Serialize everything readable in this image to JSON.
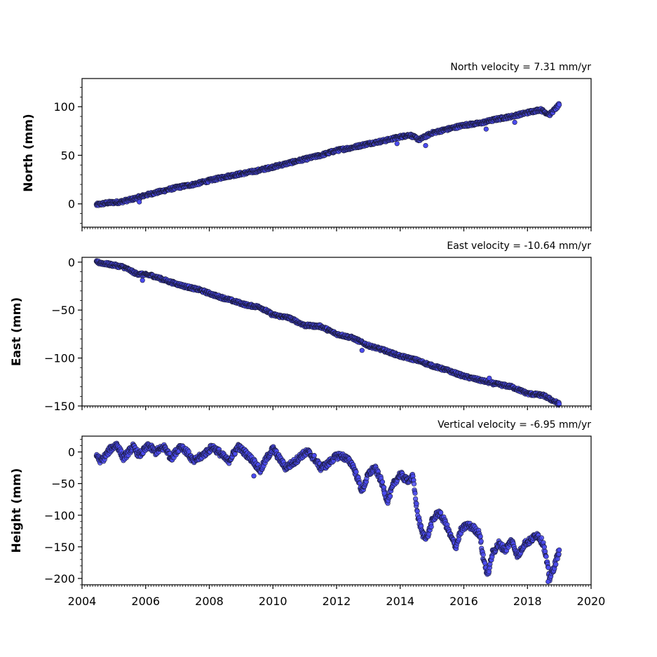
{
  "chart_data": [
    {
      "type": "scatter",
      "title": "North velocity = 7.31 mm/yr",
      "xlabel": "",
      "ylabel": "North (mm)",
      "xlim": [
        2004,
        2020
      ],
      "ylim": [
        -24,
        129
      ],
      "yticks": [
        0,
        50,
        100
      ],
      "ytick_labels": [
        "0",
        "50",
        "100"
      ],
      "grid": false,
      "series": [
        {
          "points": [
            [
              2004.45,
              -1
            ],
            [
              2004.8,
              1
            ],
            [
              2005.2,
              2
            ],
            [
              2005.6,
              5
            ],
            [
              2006.0,
              9
            ],
            [
              2006.5,
              13
            ],
            [
              2007.0,
              17
            ],
            [
              2007.5,
              20
            ],
            [
              2008.0,
              24
            ],
            [
              2008.5,
              28
            ],
            [
              2009.0,
              31
            ],
            [
              2009.5,
              34
            ],
            [
              2010.0,
              38
            ],
            [
              2010.5,
              42
            ],
            [
              2011.0,
              46
            ],
            [
              2011.5,
              50
            ],
            [
              2012.0,
              55
            ],
            [
              2012.5,
              58
            ],
            [
              2013.0,
              62
            ],
            [
              2013.5,
              65
            ],
            [
              2014.0,
              69
            ],
            [
              2014.3,
              71
            ],
            [
              2014.6,
              66
            ],
            [
              2015.0,
              73
            ],
            [
              2015.5,
              77
            ],
            [
              2016.0,
              81
            ],
            [
              2016.5,
              83
            ],
            [
              2017.0,
              87
            ],
            [
              2017.5,
              90
            ],
            [
              2018.0,
              94
            ],
            [
              2018.4,
              97
            ],
            [
              2018.7,
              92
            ],
            [
              2019.0,
              102
            ]
          ]
        }
      ],
      "outliers": [
        [
          2005.8,
          2
        ],
        [
          2013.9,
          62
        ],
        [
          2014.8,
          60
        ],
        [
          2016.7,
          77
        ],
        [
          2017.6,
          84
        ]
      ],
      "marker_color": "#4b4bf0",
      "marker_edge": "#1a1a3a"
    },
    {
      "type": "scatter",
      "title": "East velocity = -10.64 mm/yr",
      "xlabel": "",
      "ylabel": "East (mm)",
      "xlim": [
        2004,
        2020
      ],
      "ylim": [
        -150,
        5
      ],
      "yticks": [
        0,
        -50,
        -100,
        -150
      ],
      "ytick_labels": [
        "0",
        "−50",
        "−100",
        "−150"
      ],
      "grid": false,
      "series": [
        {
          "points": [
            [
              2004.45,
              0
            ],
            [
              2004.8,
              -2
            ],
            [
              2005.3,
              -5
            ],
            [
              2005.7,
              -12
            ],
            [
              2006.2,
              -14
            ],
            [
              2006.7,
              -20
            ],
            [
              2007.2,
              -25
            ],
            [
              2007.7,
              -29
            ],
            [
              2008.2,
              -35
            ],
            [
              2008.7,
              -40
            ],
            [
              2009.2,
              -45
            ],
            [
              2009.6,
              -47
            ],
            [
              2010.0,
              -55
            ],
            [
              2010.5,
              -58
            ],
            [
              2011.0,
              -66
            ],
            [
              2011.5,
              -67
            ],
            [
              2012.0,
              -75
            ],
            [
              2012.5,
              -79
            ],
            [
              2013.0,
              -87
            ],
            [
              2013.5,
              -92
            ],
            [
              2014.0,
              -98
            ],
            [
              2014.5,
              -102
            ],
            [
              2015.0,
              -108
            ],
            [
              2015.5,
              -113
            ],
            [
              2016.0,
              -119
            ],
            [
              2016.5,
              -123
            ],
            [
              2017.0,
              -127
            ],
            [
              2017.5,
              -130
            ],
            [
              2018.0,
              -137
            ],
            [
              2018.5,
              -139
            ],
            [
              2019.0,
              -148
            ]
          ]
        }
      ],
      "outliers": [
        [
          2005.9,
          -19
        ],
        [
          2012.8,
          -92
        ],
        [
          2016.8,
          -121
        ]
      ],
      "marker_color": "#4b4bf0",
      "marker_edge": "#1a1a3a"
    },
    {
      "type": "scatter",
      "title": "Vertical velocity = -6.95 mm/yr",
      "xlabel": "",
      "ylabel": "Height (mm)",
      "xlim": [
        2004,
        2020
      ],
      "ylim": [
        -210,
        25
      ],
      "yticks": [
        0,
        -50,
        -100,
        -150,
        -200
      ],
      "ytick_labels": [
        "0",
        "−50",
        "−100",
        "−150",
        "−200"
      ],
      "xticks": [
        2004,
        2006,
        2008,
        2010,
        2012,
        2014,
        2016,
        2018,
        2020
      ],
      "xtick_labels": [
        "2004",
        "2006",
        "2008",
        "2010",
        "2012",
        "2014",
        "2016",
        "2018",
        "2020"
      ],
      "grid": false,
      "series": [
        {
          "points": [
            [
              2004.45,
              -5
            ],
            [
              2004.6,
              -15
            ],
            [
              2004.9,
              5
            ],
            [
              2005.1,
              12
            ],
            [
              2005.3,
              -10
            ],
            [
              2005.6,
              8
            ],
            [
              2005.8,
              -5
            ],
            [
              2006.1,
              10
            ],
            [
              2006.3,
              0
            ],
            [
              2006.6,
              8
            ],
            [
              2006.8,
              -10
            ],
            [
              2007.1,
              10
            ],
            [
              2007.3,
              0
            ],
            [
              2007.5,
              -15
            ],
            [
              2007.8,
              -5
            ],
            [
              2008.1,
              8
            ],
            [
              2008.3,
              0
            ],
            [
              2008.6,
              -15
            ],
            [
              2008.9,
              8
            ],
            [
              2009.1,
              0
            ],
            [
              2009.4,
              -15
            ],
            [
              2009.6,
              -30
            ],
            [
              2009.8,
              -10
            ],
            [
              2010.0,
              5
            ],
            [
              2010.2,
              -10
            ],
            [
              2010.4,
              -25
            ],
            [
              2010.7,
              -15
            ],
            [
              2010.9,
              -5
            ],
            [
              2011.1,
              0
            ],
            [
              2011.3,
              -10
            ],
            [
              2011.5,
              -25
            ],
            [
              2011.7,
              -20
            ],
            [
              2011.9,
              -10
            ],
            [
              2012.1,
              -5
            ],
            [
              2012.3,
              -10
            ],
            [
              2012.5,
              -20
            ],
            [
              2012.65,
              -40
            ],
            [
              2012.8,
              -62
            ],
            [
              2013.0,
              -35
            ],
            [
              2013.2,
              -25
            ],
            [
              2013.4,
              -45
            ],
            [
              2013.6,
              -78
            ],
            [
              2013.8,
              -50
            ],
            [
              2014.0,
              -35
            ],
            [
              2014.2,
              -45
            ],
            [
              2014.4,
              -40
            ],
            [
              2014.55,
              -100
            ],
            [
              2014.7,
              -130
            ],
            [
              2014.85,
              -135
            ],
            [
              2015.0,
              -110
            ],
            [
              2015.2,
              -95
            ],
            [
              2015.4,
              -110
            ],
            [
              2015.6,
              -135
            ],
            [
              2015.75,
              -150
            ],
            [
              2015.9,
              -125
            ],
            [
              2016.1,
              -115
            ],
            [
              2016.3,
              -120
            ],
            [
              2016.5,
              -130
            ],
            [
              2016.6,
              -165
            ],
            [
              2016.75,
              -195
            ],
            [
              2016.9,
              -160
            ],
            [
              2017.1,
              -145
            ],
            [
              2017.3,
              -155
            ],
            [
              2017.5,
              -140
            ],
            [
              2017.7,
              -165
            ],
            [
              2017.9,
              -145
            ],
            [
              2018.1,
              -140
            ],
            [
              2018.3,
              -130
            ],
            [
              2018.5,
              -145
            ],
            [
              2018.7,
              -200
            ],
            [
              2018.85,
              -180
            ],
            [
              2019.0,
              -155
            ]
          ]
        }
      ],
      "outliers": [
        [
          2009.4,
          -38
        ],
        [
          2013.5,
          -65
        ],
        [
          2018.65,
          -205
        ]
      ],
      "marker_color": "#4b4bf0",
      "marker_edge": "#1a1a3a"
    }
  ]
}
